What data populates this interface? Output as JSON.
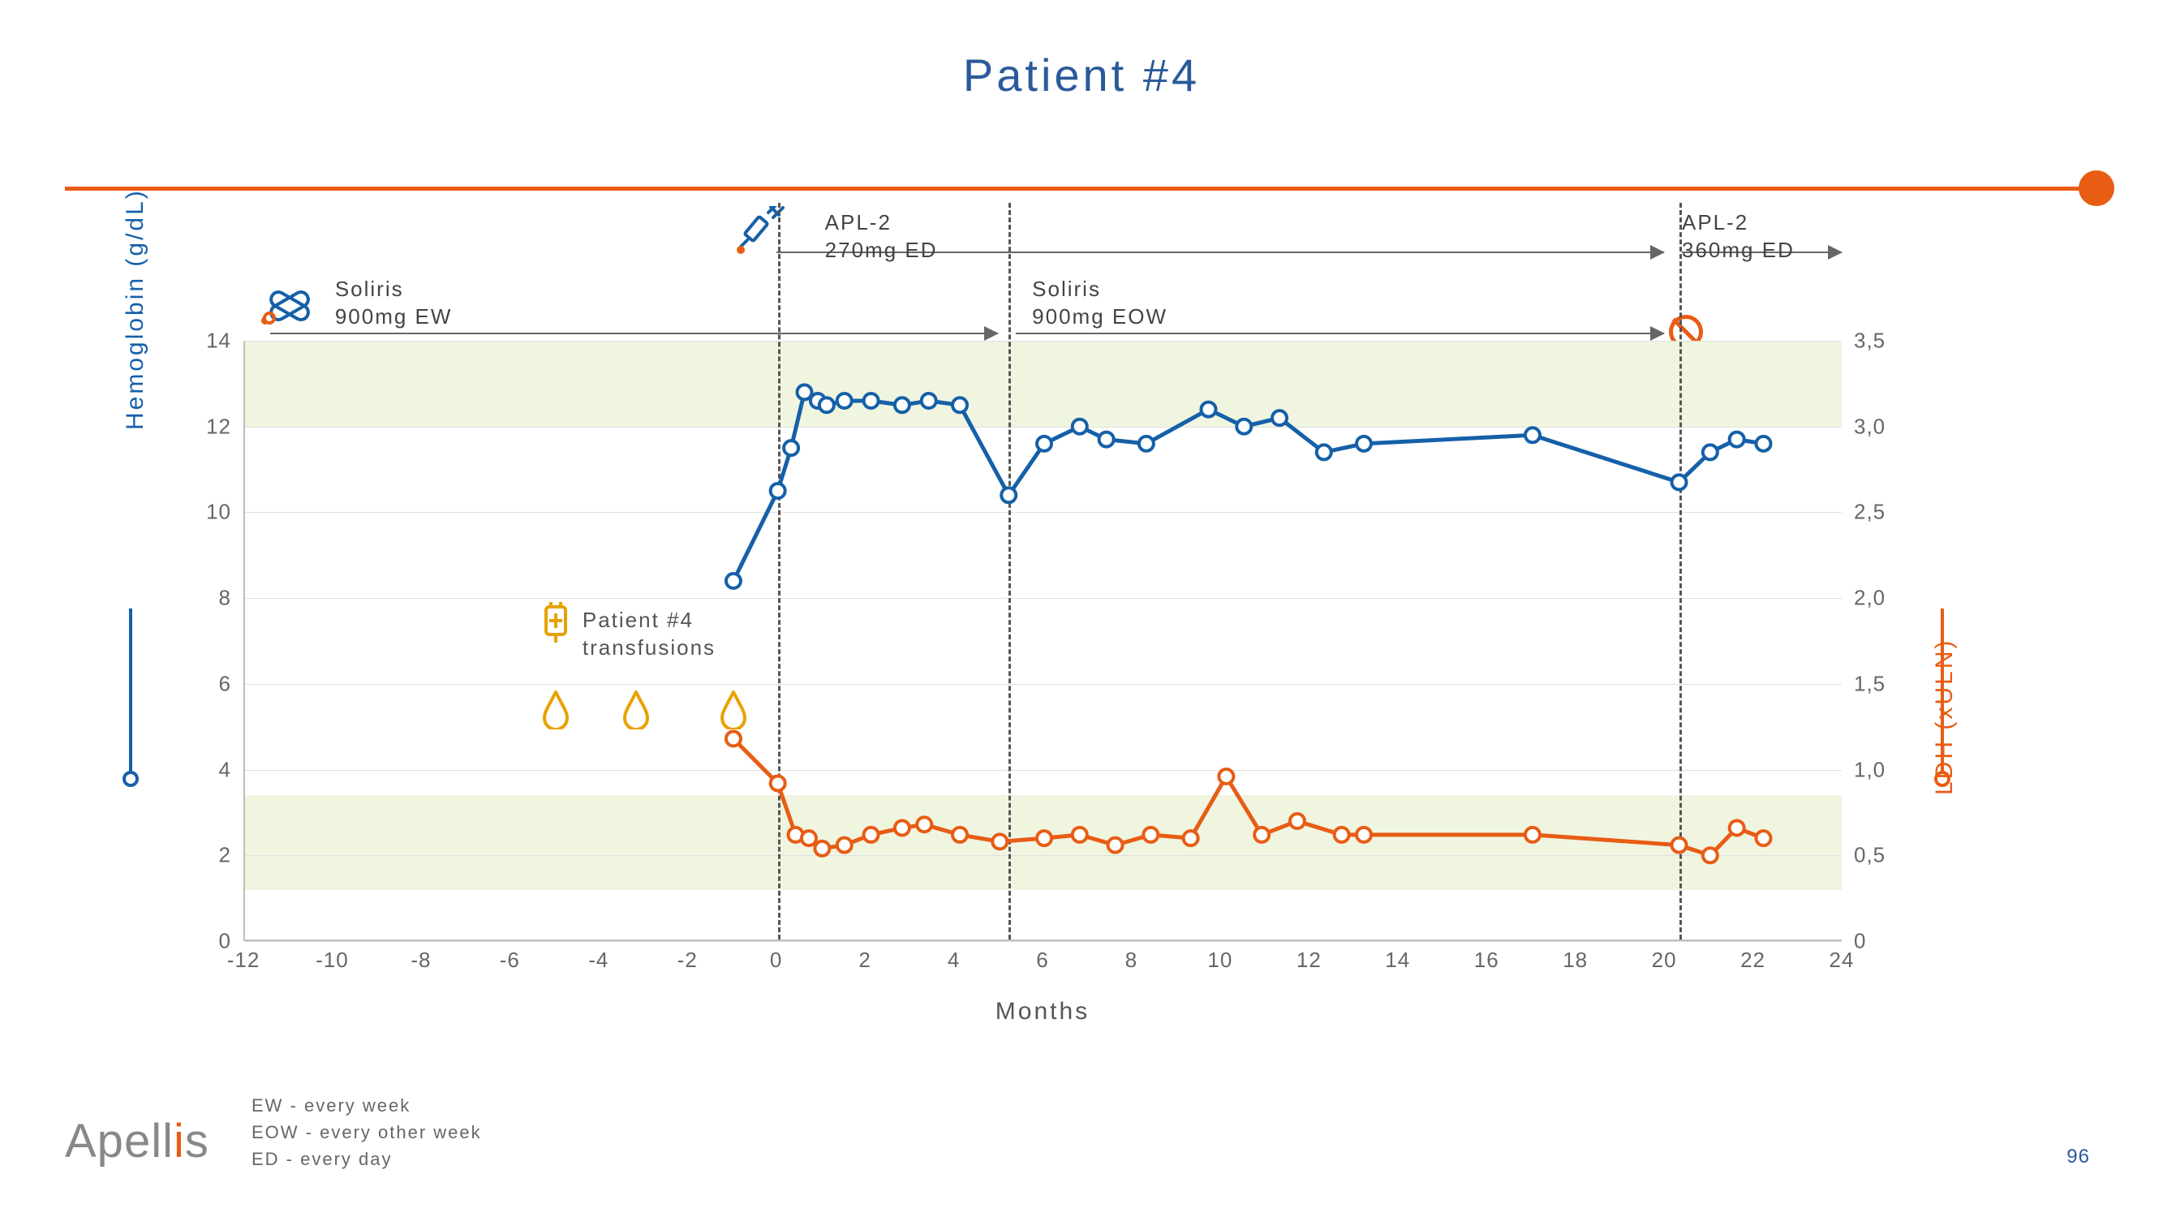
{
  "title": "Patient #4",
  "page_number": "96",
  "brand": "Apellis",
  "colors": {
    "hemoglobin": "#1560a8",
    "ldh": "#e85c14",
    "rule": "#e85c14",
    "grid": "#e0e0e0",
    "band": "#f0f5e0",
    "text_muted": "#666666",
    "drop": "#e8a100"
  },
  "chart": {
    "type": "dual-axis-line",
    "x": {
      "label": "Months",
      "min": -12,
      "max": 24,
      "ticks": [
        -12,
        -10,
        -8,
        -6,
        -4,
        -2,
        0,
        2,
        4,
        6,
        8,
        10,
        12,
        14,
        16,
        18,
        20,
        22,
        24
      ]
    },
    "y_left": {
      "label": "Hemoglobin (g/dL)",
      "min": 0,
      "max": 14,
      "ticks": [
        0,
        2,
        4,
        6,
        8,
        10,
        12,
        14
      ],
      "color": "#1560a8"
    },
    "y_right": {
      "label": "LDH (xULN)",
      "min": 0,
      "max": 3.5,
      "ticks": [
        "0",
        "0,5",
        "1,0",
        "1,5",
        "2,0",
        "2,5",
        "3,0",
        "3,5"
      ],
      "color": "#e85c14"
    },
    "normal_bands_y_left": [
      {
        "from": 12,
        "to": 14
      },
      {
        "from": 1.2,
        "to": 3.4
      }
    ],
    "vlines_x": [
      0,
      5.2,
      20.3
    ],
    "hemoglobin_points": [
      {
        "x": -1.0,
        "y": 8.4
      },
      {
        "x": 0.0,
        "y": 10.5
      },
      {
        "x": 0.3,
        "y": 11.5
      },
      {
        "x": 0.6,
        "y": 12.8
      },
      {
        "x": 0.9,
        "y": 12.6
      },
      {
        "x": 1.1,
        "y": 12.5
      },
      {
        "x": 1.5,
        "y": 12.6
      },
      {
        "x": 2.1,
        "y": 12.6
      },
      {
        "x": 2.8,
        "y": 12.5
      },
      {
        "x": 3.4,
        "y": 12.6
      },
      {
        "x": 4.1,
        "y": 12.5
      },
      {
        "x": 5.2,
        "y": 10.4
      },
      {
        "x": 6.0,
        "y": 11.6
      },
      {
        "x": 6.8,
        "y": 12.0
      },
      {
        "x": 7.4,
        "y": 11.7
      },
      {
        "x": 8.3,
        "y": 11.6
      },
      {
        "x": 9.7,
        "y": 12.4
      },
      {
        "x": 10.5,
        "y": 12.0
      },
      {
        "x": 11.3,
        "y": 12.2
      },
      {
        "x": 12.3,
        "y": 11.4
      },
      {
        "x": 13.2,
        "y": 11.6
      },
      {
        "x": 17.0,
        "y": 11.8
      },
      {
        "x": 20.3,
        "y": 10.7
      },
      {
        "x": 21.0,
        "y": 11.4
      },
      {
        "x": 21.6,
        "y": 11.7
      },
      {
        "x": 22.2,
        "y": 11.6
      }
    ],
    "ldh_points": [
      {
        "x": -1.0,
        "y": 1.18
      },
      {
        "x": 0.0,
        "y": 0.92
      },
      {
        "x": 0.4,
        "y": 0.62
      },
      {
        "x": 0.7,
        "y": 0.6
      },
      {
        "x": 1.0,
        "y": 0.54
      },
      {
        "x": 1.5,
        "y": 0.56
      },
      {
        "x": 2.1,
        "y": 0.62
      },
      {
        "x": 2.8,
        "y": 0.66
      },
      {
        "x": 3.3,
        "y": 0.68
      },
      {
        "x": 4.1,
        "y": 0.62
      },
      {
        "x": 5.0,
        "y": 0.58
      },
      {
        "x": 6.0,
        "y": 0.6
      },
      {
        "x": 6.8,
        "y": 0.62
      },
      {
        "x": 7.6,
        "y": 0.56
      },
      {
        "x": 8.4,
        "y": 0.62
      },
      {
        "x": 9.3,
        "y": 0.6
      },
      {
        "x": 10.1,
        "y": 0.96
      },
      {
        "x": 10.9,
        "y": 0.62
      },
      {
        "x": 11.7,
        "y": 0.7
      },
      {
        "x": 12.7,
        "y": 0.62
      },
      {
        "x": 13.2,
        "y": 0.62
      },
      {
        "x": 17.0,
        "y": 0.62
      },
      {
        "x": 20.3,
        "y": 0.56
      },
      {
        "x": 21.0,
        "y": 0.5
      },
      {
        "x": 21.6,
        "y": 0.66
      },
      {
        "x": 22.2,
        "y": 0.6
      }
    ],
    "transfusion_x": [
      -5.0,
      -3.2,
      -1.0
    ],
    "transfusion_label": "Patient #4\ntransfusions"
  },
  "annotations": {
    "soliris_ew": {
      "line1": "Soliris",
      "line2": "900mg EW",
      "x_from": -11.4,
      "x_to": 5.0
    },
    "soliris_eow": {
      "line1": "Soliris",
      "line2": "900mg EOW",
      "x_from": 5.4,
      "x_to": 20.0
    },
    "apl2_270": {
      "line1": "APL-2",
      "line2": "270mg ED",
      "x_from": 0.0,
      "x_to": 20.0
    },
    "apl2_360": {
      "line1": "APL-2",
      "line2": "360mg ED",
      "x_from": 20.4,
      "x_to": 24.0
    }
  },
  "footnotes": {
    "l1": "EW - every week",
    "l2": "EOW - every other week",
    "l3": "ED - every day"
  }
}
